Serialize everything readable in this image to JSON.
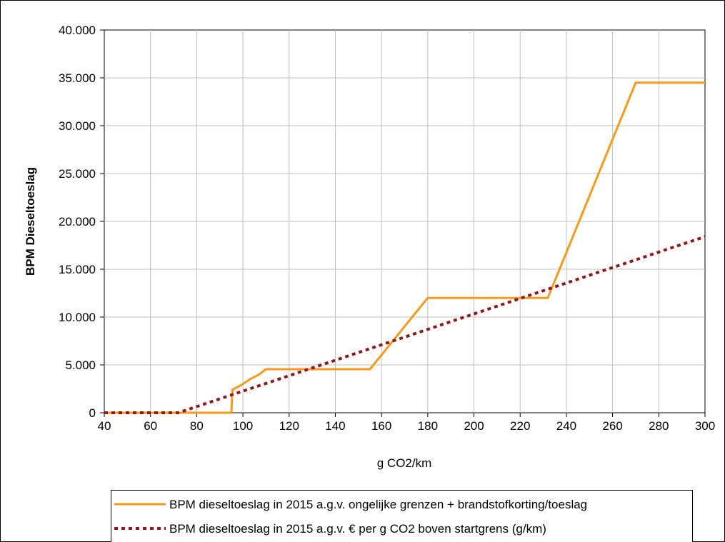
{
  "chart_data": {
    "type": "line",
    "xlabel": "g CO2/km",
    "ylabel": "BPM Dieseltoeslag",
    "xlim": [
      40,
      300
    ],
    "ylim": [
      0,
      40000
    ],
    "x_ticks": [
      40,
      60,
      80,
      100,
      120,
      140,
      160,
      180,
      200,
      220,
      240,
      260,
      280,
      300
    ],
    "x_tick_labels": [
      "40",
      "60",
      "80",
      "100",
      "120",
      "140",
      "160",
      "180",
      "200",
      "220",
      "240",
      "260",
      "280",
      "300"
    ],
    "y_ticks": [
      0,
      5000,
      10000,
      15000,
      20000,
      25000,
      30000,
      35000,
      40000
    ],
    "y_tick_labels": [
      "0",
      "5.000",
      "10.000",
      "15.000",
      "20.000",
      "25.000",
      "30.000",
      "35.000",
      "40.000"
    ],
    "grid": true,
    "legend_position": "bottom",
    "series": [
      {
        "name": "BPM dieseltoeslag in 2015 a.g.v. ongelijke grenzen + brandstofkorting/toeslag",
        "color": "#f79a1c",
        "style": "solid",
        "x": [
          40,
          95,
          95.5,
          100,
          103,
          107,
          110,
          155,
          180,
          232,
          270,
          300
        ],
        "y": [
          0,
          0,
          2400,
          3000,
          3500,
          4000,
          4550,
          4550,
          12000,
          12000,
          34500,
          34500
        ]
      },
      {
        "name": "BPM dieseltoeslag in 2015 a.g.v. € per g CO2 boven startgrens (g/km)",
        "color": "#8b1a1a",
        "style": "dotted",
        "x": [
          40,
          72,
          300
        ],
        "y": [
          0,
          0,
          18400
        ]
      }
    ]
  }
}
